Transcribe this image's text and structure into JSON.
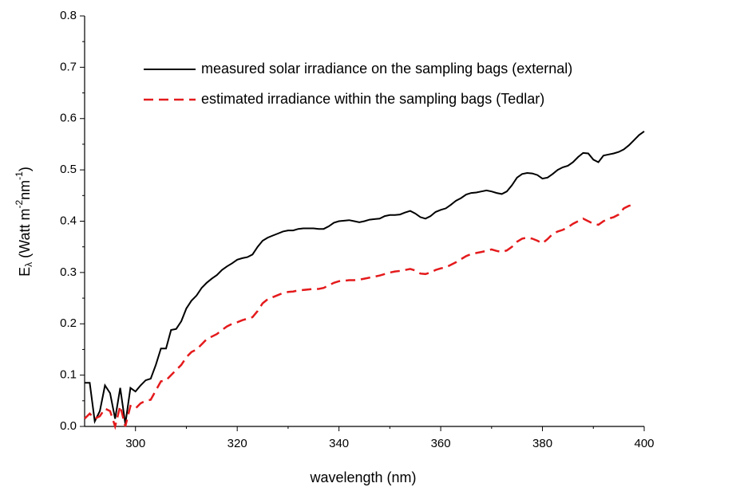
{
  "chart_data": {
    "type": "line",
    "xlabel": "wavelength (nm)",
    "ylabel": [
      "E",
      "λ",
      " (Watt m",
      "-2",
      "nm",
      "-1",
      ")"
    ],
    "xlim": [
      290,
      400
    ],
    "xticks": [
      300,
      320,
      340,
      360,
      380,
      400
    ],
    "ylim": [
      0,
      0.8
    ],
    "yticks": [
      {
        "value": 0,
        "label": "0.0"
      },
      0.1,
      0.2,
      0.3,
      0.4,
      0.5,
      0.6,
      0.7,
      0.8
    ],
    "legend": "top-right",
    "x": [
      290,
      291,
      292,
      293,
      294,
      295,
      296,
      297,
      298,
      299,
      300,
      301,
      302,
      303,
      304,
      305,
      306,
      307,
      308,
      309,
      310,
      311,
      312,
      313,
      314,
      315,
      316,
      317,
      318,
      319,
      320,
      321,
      322,
      323,
      324,
      325,
      326,
      327,
      328,
      329,
      330,
      331,
      332,
      333,
      334,
      335,
      336,
      337,
      338,
      339,
      340,
      341,
      342,
      343,
      344,
      345,
      346,
      347,
      348,
      349,
      350,
      351,
      352,
      353,
      354,
      355,
      356,
      357,
      358,
      359,
      360,
      361,
      362,
      363,
      364,
      365,
      366,
      367,
      368,
      369,
      370,
      371,
      372,
      373,
      374,
      375,
      376,
      377,
      378,
      379,
      380,
      381,
      382,
      383,
      384,
      385,
      386,
      387,
      388,
      389,
      390,
      391,
      392,
      393,
      394,
      395,
      396,
      397,
      398,
      399,
      400
    ],
    "series": [
      {
        "name": "measured solar irradiance on the sampling bags (external)",
        "color": "#000000",
        "dash": false,
        "values": [
          0.085,
          0.085,
          0.01,
          0.03,
          0.08,
          0.065,
          0.015,
          0.075,
          0.005,
          0.075,
          0.068,
          0.08,
          0.09,
          0.093,
          0.12,
          0.152,
          0.152,
          0.188,
          0.19,
          0.205,
          0.23,
          0.245,
          0.255,
          0.27,
          0.28,
          0.288,
          0.295,
          0.305,
          0.312,
          0.318,
          0.325,
          0.328,
          0.33,
          0.335,
          0.35,
          0.362,
          0.368,
          0.372,
          0.376,
          0.38,
          0.382,
          0.382,
          0.385,
          0.386,
          0.386,
          0.386,
          0.385,
          0.385,
          0.39,
          0.397,
          0.4,
          0.401,
          0.402,
          0.4,
          0.398,
          0.4,
          0.403,
          0.404,
          0.405,
          0.41,
          0.412,
          0.412,
          0.413,
          0.417,
          0.42,
          0.415,
          0.408,
          0.405,
          0.41,
          0.418,
          0.422,
          0.425,
          0.432,
          0.44,
          0.445,
          0.452,
          0.455,
          0.456,
          0.458,
          0.46,
          0.458,
          0.455,
          0.453,
          0.458,
          0.47,
          0.485,
          0.492,
          0.494,
          0.493,
          0.49,
          0.483,
          0.485,
          0.492,
          0.5,
          0.505,
          0.508,
          0.515,
          0.525,
          0.533,
          0.532,
          0.52,
          0.515,
          0.528,
          0.53,
          0.532,
          0.535,
          0.54,
          0.548,
          0.558,
          0.568,
          0.575
        ]
      },
      {
        "name": "estimated irradiance within the sampling bags (Tedlar)",
        "color": "#e41a1c",
        "dash": true,
        "values": [
          0.015,
          0.025,
          0.015,
          0.02,
          0.035,
          0.03,
          0.0,
          0.04,
          0.0,
          0.04,
          0.035,
          0.045,
          0.05,
          0.052,
          0.07,
          0.088,
          0.09,
          0.1,
          0.11,
          0.12,
          0.135,
          0.145,
          0.15,
          0.16,
          0.17,
          0.175,
          0.18,
          0.188,
          0.195,
          0.2,
          0.203,
          0.207,
          0.21,
          0.213,
          0.225,
          0.24,
          0.248,
          0.252,
          0.256,
          0.26,
          0.262,
          0.263,
          0.265,
          0.266,
          0.267,
          0.268,
          0.268,
          0.27,
          0.275,
          0.28,
          0.283,
          0.284,
          0.285,
          0.285,
          0.286,
          0.288,
          0.29,
          0.292,
          0.294,
          0.297,
          0.3,
          0.302,
          0.303,
          0.305,
          0.307,
          0.304,
          0.298,
          0.297,
          0.3,
          0.305,
          0.308,
          0.31,
          0.315,
          0.32,
          0.326,
          0.332,
          0.336,
          0.338,
          0.34,
          0.342,
          0.345,
          0.342,
          0.34,
          0.343,
          0.35,
          0.36,
          0.366,
          0.368,
          0.366,
          0.362,
          0.357,
          0.365,
          0.375,
          0.38,
          0.383,
          0.388,
          0.395,
          0.4,
          0.405,
          0.4,
          0.395,
          0.393,
          0.4,
          0.405,
          0.408,
          0.413,
          0.425,
          0.43,
          0.432,
          null,
          null
        ]
      }
    ]
  }
}
